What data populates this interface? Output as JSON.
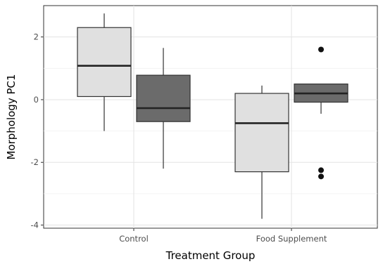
{
  "chart_data": {
    "type": "boxplot",
    "title": "",
    "xlabel": "Treatment Group",
    "ylabel": "Morphology PC1",
    "categories": [
      "Control",
      "Food Supplement"
    ],
    "ylim": [
      -4.1,
      3.0
    ],
    "yticks": [
      -4,
      -2,
      0,
      2
    ],
    "grid": true,
    "legend": "none",
    "series": [
      {
        "fill": "#e0e0e0",
        "boxes": [
          {
            "category": "Control",
            "whisker_low": -1.0,
            "q1": 0.1,
            "median": 1.08,
            "q3": 2.3,
            "whisker_high": 2.75,
            "outliers": []
          },
          {
            "category": "Food Supplement",
            "whisker_low": -3.8,
            "q1": -2.3,
            "median": -0.75,
            "q3": 0.2,
            "whisker_high": 0.45,
            "outliers": []
          }
        ]
      },
      {
        "fill": "#6b6b6b",
        "boxes": [
          {
            "category": "Control",
            "whisker_low": -2.2,
            "q1": -0.7,
            "median": -0.27,
            "q3": 0.78,
            "whisker_high": 1.65,
            "outliers": []
          },
          {
            "category": "Food Supplement",
            "whisker_low": -0.45,
            "q1": -0.08,
            "median": 0.2,
            "q3": 0.5,
            "whisker_high": 0.5,
            "outliers": [
              1.6,
              -2.25,
              -2.45
            ]
          }
        ]
      }
    ]
  }
}
